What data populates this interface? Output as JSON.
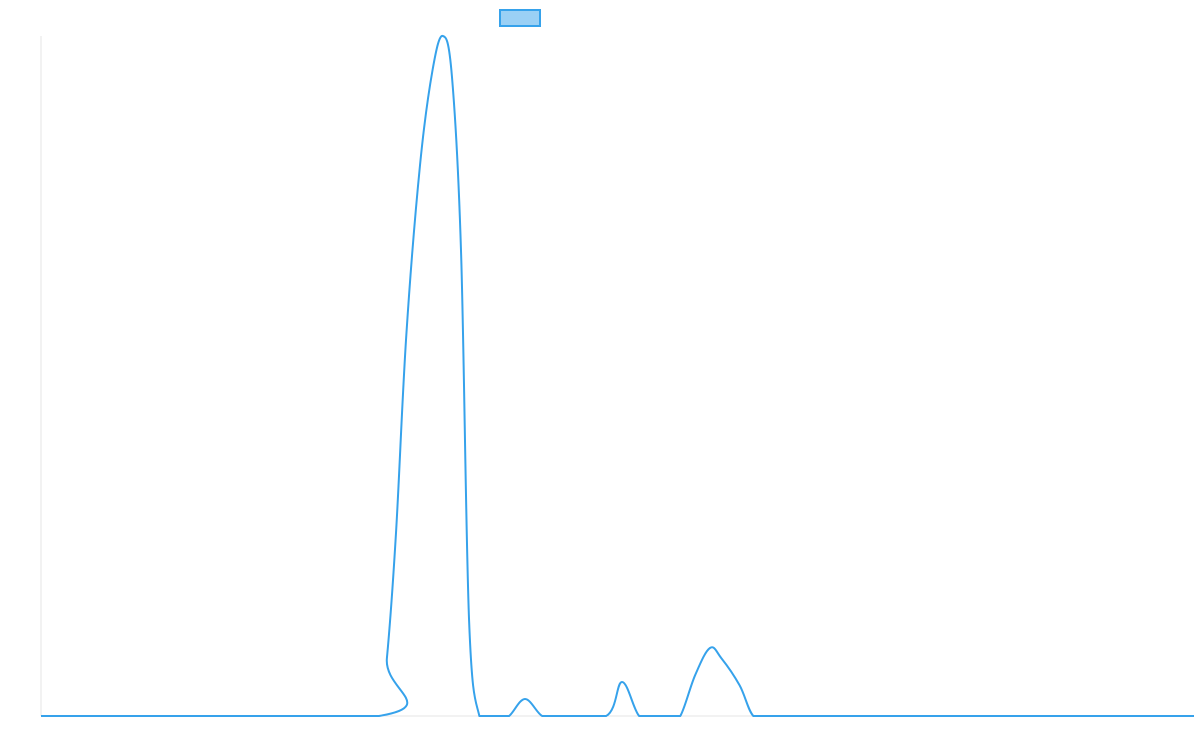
{
  "chart_data": {
    "type": "line",
    "title": "",
    "xlabel": "",
    "ylabel": "",
    "grid": false,
    "legend": {
      "position": "top-center",
      "entries": [
        {
          "label": "",
          "swatch_fill": "#9AD0F5",
          "swatch_stroke": "#36A2EB"
        }
      ]
    },
    "xlim": [
      0,
      101
    ],
    "ylim": [
      0,
      100
    ],
    "series": [
      {
        "color": "#36A2EB",
        "x": [
          0,
          29.6,
          30.3,
          31.1,
          32.0,
          33.2,
          34.3,
          35.2,
          36.0,
          36.8,
          37.5,
          38.4,
          39.4,
          40.1,
          41.0,
          42.4,
          43.9,
          45.2,
          49.5,
          50.9,
          52.4,
          53.8,
          55.1,
          56.0,
          57.3,
          58.6,
          59.6,
          61.2,
          62.4,
          63.8,
          65.3,
          71.0,
          80.0,
          90.0,
          101.0
        ],
        "y": [
          0,
          0,
          8.5,
          27,
          56,
          81,
          95,
          100,
          94,
          68,
          14,
          0,
          0,
          0,
          0,
          2.5,
          0,
          0,
          0,
          5,
          0,
          0,
          0,
          0,
          6,
          10,
          8.5,
          4.5,
          0,
          0,
          0,
          0,
          0,
          0,
          0
        ]
      }
    ]
  }
}
